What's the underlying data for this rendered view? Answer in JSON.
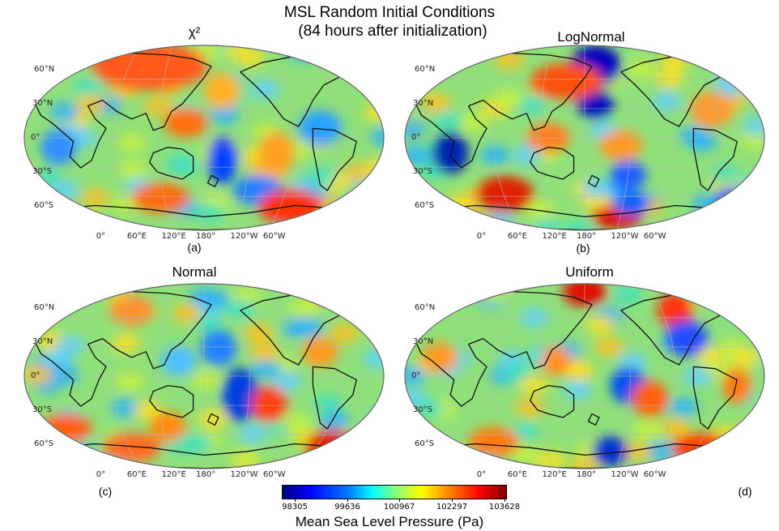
{
  "title": "MSL Random Initial Conditions",
  "subtitle": "(84 hours after initialization)",
  "panels": [
    {
      "title": "χ²",
      "letter": "(a)"
    },
    {
      "title": "LogNormal",
      "letter": "(b)"
    },
    {
      "title": "Normal",
      "letter": "(c)"
    },
    {
      "title": "Uniform",
      "letter": "(d)"
    }
  ],
  "lat_labels": [
    "60°N",
    "30°N",
    "0°",
    "30°S",
    "60°S"
  ],
  "lon_labels": [
    "0°",
    "60°E",
    "120°E",
    "180°",
    "120°W",
    "60°W"
  ],
  "colorbar": {
    "label": "Mean Sea Level Pressure (Pa)",
    "ticks": [
      "98305",
      "99636",
      "100967",
      "102297",
      "103628"
    ],
    "colormap": "jet"
  }
}
